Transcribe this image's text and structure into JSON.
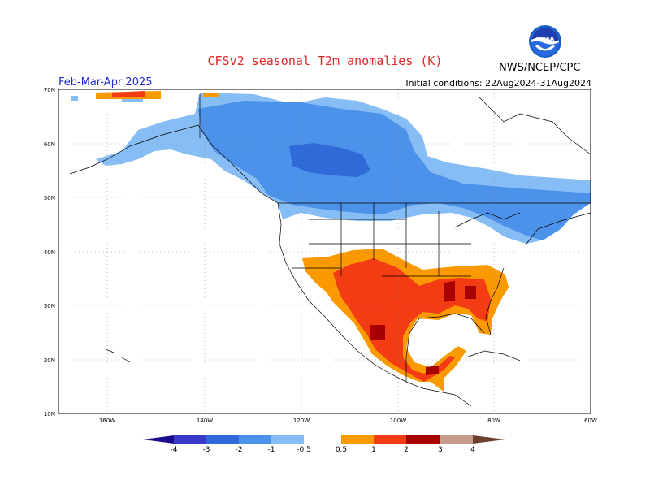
{
  "header": {
    "title": "CFSv2 seasonal T2m anomalies (K)",
    "season": "Feb-Mar-Apr 2025",
    "initial_conditions": "Initial conditions: 22Aug2024-31Aug2024",
    "agency": "NWS/NCEP/CPC",
    "logo_text": "NOAA"
  },
  "map": {
    "lat_labels": [
      "70N",
      "60N",
      "50N",
      "40N",
      "30N",
      "20N",
      "10N"
    ],
    "lon_labels": [
      "160W",
      "140W",
      "120W",
      "100W",
      "80W",
      "60W"
    ]
  },
  "colorbar": {
    "labels": [
      "-4",
      "-3",
      "-2",
      "-1",
      "-0.5",
      "0.5",
      "1",
      "2",
      "3",
      "4"
    ],
    "colors": [
      "#1a0c8c",
      "#3a3ac8",
      "#2f6ad8",
      "#4c92ea",
      "#86bdf5",
      "#ffffff",
      "#fa9a00",
      "#f33b14",
      "#a80000",
      "#c89b8c",
      "#6e3e2c"
    ]
  },
  "anomaly_colors": {
    "cold_weak": "#86bdf5",
    "cold_moderate": "#4c92ea",
    "cold_strong": "#2f6ad8",
    "warm_weak": "#fa9a00",
    "warm_moderate": "#f33b14",
    "warm_strong": "#a80000"
  }
}
